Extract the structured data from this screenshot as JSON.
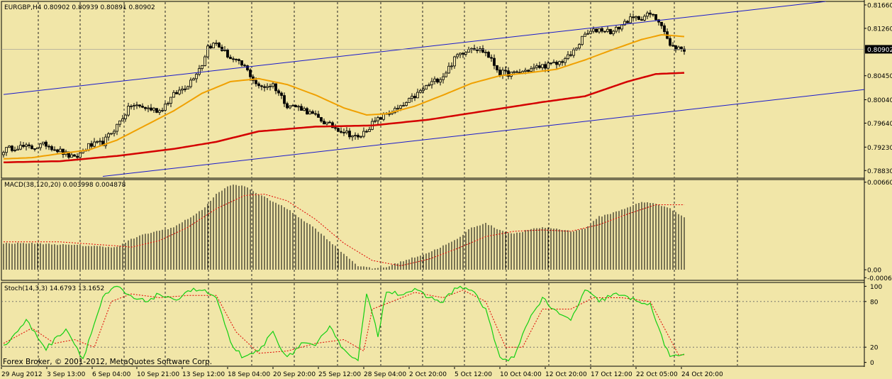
{
  "footer": "Forex Broker, © 2001-2012, MetaQuotes Software Corp.",
  "colors": {
    "background": "#f1e6a8",
    "grid": "#222222",
    "candle": "#000000",
    "ma_fast": "#f0a000",
    "ma_slow": "#d40000",
    "channel": "#1a1acc",
    "macd_signal": "#e00000",
    "stoch_main": "#12d012",
    "stoch_signal": "#e00000"
  },
  "chart_data": [
    {
      "type": "candlestick",
      "label": "EURGBP,H4  0.80902 0.80939 0.80891 0.80902",
      "current_price": "0.80902",
      "ylim": [
        0.787,
        0.8172
      ],
      "y_ticks": [
        "0.81660",
        "0.81260",
        "0.80902",
        "0.80450",
        "0.80040",
        "0.79640",
        "0.79230",
        "0.78830"
      ],
      "x_ticks": [
        "29 Aug 2012",
        "3 Sep 13:00",
        "6 Sep 04:00",
        "10 Sep 21:00",
        "13 Sep 12:00",
        "18 Sep 04:00",
        "20 Sep 20:00",
        "25 Sep 12:00",
        "28 Sep 04:00",
        "2 Oct 20:00",
        "5 Oct 12:00",
        "10 Oct 04:00",
        "12 Oct 20:00",
        "17 Oct 12:00",
        "22 Oct 05:00",
        "24 Oct 20:00"
      ],
      "close_anchors": [
        [
          0,
          0.7918
        ],
        [
          5,
          0.7924
        ],
        [
          10,
          0.7922
        ],
        [
          15,
          0.7928
        ],
        [
          20,
          0.7916
        ],
        [
          25,
          0.7903
        ],
        [
          30,
          0.7925
        ],
        [
          35,
          0.793
        ],
        [
          40,
          0.796
        ],
        [
          45,
          0.7995
        ],
        [
          50,
          0.799
        ],
        [
          55,
          0.7985
        ],
        [
          60,
          0.8012
        ],
        [
          65,
          0.803
        ],
        [
          70,
          0.8065
        ],
        [
          72,
          0.8095
        ],
        [
          75,
          0.81
        ],
        [
          80,
          0.8075
        ],
        [
          85,
          0.806
        ],
        [
          90,
          0.8025
        ],
        [
          95,
          0.803
        ],
        [
          100,
          0.7995
        ],
        [
          105,
          0.799
        ],
        [
          110,
          0.7975
        ],
        [
          115,
          0.796
        ],
        [
          120,
          0.795
        ],
        [
          125,
          0.7938
        ],
        [
          130,
          0.7963
        ],
        [
          135,
          0.798
        ],
        [
          140,
          0.799
        ],
        [
          145,
          0.801
        ],
        [
          150,
          0.803
        ],
        [
          155,
          0.8045
        ],
        [
          160,
          0.808
        ],
        [
          165,
          0.8095
        ],
        [
          170,
          0.8085
        ],
        [
          175,
          0.805
        ],
        [
          180,
          0.8048
        ],
        [
          185,
          0.8055
        ],
        [
          190,
          0.8062
        ],
        [
          195,
          0.8065
        ],
        [
          200,
          0.808
        ],
        [
          205,
          0.8115
        ],
        [
          210,
          0.8125
        ],
        [
          215,
          0.812
        ],
        [
          220,
          0.814
        ],
        [
          225,
          0.8145
        ],
        [
          228,
          0.815
        ],
        [
          232,
          0.8135
        ],
        [
          235,
          0.8095
        ],
        [
          240,
          0.809
        ]
      ],
      "ma_fast_anchors": [
        [
          0,
          0.7903
        ],
        [
          10,
          0.7905
        ],
        [
          20,
          0.7912
        ],
        [
          30,
          0.7918
        ],
        [
          40,
          0.7935
        ],
        [
          50,
          0.796
        ],
        [
          60,
          0.7985
        ],
        [
          70,
          0.8015
        ],
        [
          80,
          0.8035
        ],
        [
          90,
          0.804
        ],
        [
          100,
          0.803
        ],
        [
          110,
          0.8012
        ],
        [
          120,
          0.799
        ],
        [
          128,
          0.7978
        ],
        [
          135,
          0.798
        ],
        [
          145,
          0.7993
        ],
        [
          155,
          0.8012
        ],
        [
          165,
          0.8032
        ],
        [
          175,
          0.8045
        ],
        [
          185,
          0.805
        ],
        [
          195,
          0.8056
        ],
        [
          205,
          0.8072
        ],
        [
          215,
          0.809
        ],
        [
          225,
          0.8107
        ],
        [
          232,
          0.8115
        ],
        [
          240,
          0.8112
        ]
      ],
      "ma_slow_anchors": [
        [
          0,
          0.7897
        ],
        [
          20,
          0.7899
        ],
        [
          40,
          0.7908
        ],
        [
          60,
          0.792
        ],
        [
          75,
          0.7932
        ],
        [
          90,
          0.795
        ],
        [
          110,
          0.7958
        ],
        [
          130,
          0.796
        ],
        [
          150,
          0.797
        ],
        [
          170,
          0.7985
        ],
        [
          190,
          0.8
        ],
        [
          205,
          0.801
        ],
        [
          220,
          0.8035
        ],
        [
          230,
          0.8048
        ],
        [
          240,
          0.805
        ]
      ],
      "channel_upper": [
        [
          0,
          0.8013
        ],
        [
          290,
          0.8172
        ]
      ],
      "channel_lower": [
        [
          35,
          0.7873
        ],
        [
          310,
          0.8025
        ]
      ]
    },
    {
      "type": "bar",
      "label": "MACD(38,120,20) 0.003998 0.004878",
      "ylim": [
        -0.0008,
        0.0068
      ],
      "y_ticks": [
        "0.00660",
        "0.00",
        "-0.00060"
      ],
      "macd_anchors": [
        [
          0,
          0.002
        ],
        [
          10,
          0.002
        ],
        [
          20,
          0.0019
        ],
        [
          30,
          0.0018
        ],
        [
          40,
          0.0017
        ],
        [
          45,
          0.0023
        ],
        [
          50,
          0.0027
        ],
        [
          60,
          0.0032
        ],
        [
          70,
          0.0045
        ],
        [
          75,
          0.0057
        ],
        [
          80,
          0.0064
        ],
        [
          85,
          0.0063
        ],
        [
          90,
          0.0057
        ],
        [
          100,
          0.0046
        ],
        [
          110,
          0.0031
        ],
        [
          120,
          0.0012
        ],
        [
          125,
          0.0003
        ],
        [
          130,
          0.0001
        ],
        [
          135,
          0.0002
        ],
        [
          140,
          0.0006
        ],
        [
          150,
          0.0013
        ],
        [
          160,
          0.0023
        ],
        [
          165,
          0.0032
        ],
        [
          170,
          0.0035
        ],
        [
          175,
          0.003
        ],
        [
          180,
          0.0027
        ],
        [
          185,
          0.003
        ],
        [
          190,
          0.0032
        ],
        [
          195,
          0.0031
        ],
        [
          200,
          0.0029
        ],
        [
          205,
          0.0031
        ],
        [
          210,
          0.004
        ],
        [
          215,
          0.0043
        ],
        [
          220,
          0.0047
        ],
        [
          225,
          0.0051
        ],
        [
          230,
          0.005
        ],
        [
          235,
          0.0046
        ],
        [
          240,
          0.004
        ]
      ],
      "signal_anchors": [
        [
          0,
          0.0021
        ],
        [
          20,
          0.0021
        ],
        [
          40,
          0.0018
        ],
        [
          45,
          0.0017
        ],
        [
          55,
          0.0022
        ],
        [
          65,
          0.0032
        ],
        [
          75,
          0.0046
        ],
        [
          85,
          0.0056
        ],
        [
          92,
          0.0057
        ],
        [
          100,
          0.0052
        ],
        [
          110,
          0.0038
        ],
        [
          120,
          0.002
        ],
        [
          130,
          0.0007
        ],
        [
          140,
          0.0003
        ],
        [
          150,
          0.0008
        ],
        [
          160,
          0.0016
        ],
        [
          170,
          0.0025
        ],
        [
          180,
          0.0029
        ],
        [
          190,
          0.003
        ],
        [
          200,
          0.0029
        ],
        [
          210,
          0.0034
        ],
        [
          220,
          0.0042
        ],
        [
          230,
          0.0049
        ],
        [
          240,
          0.0049
        ]
      ]
    },
    {
      "type": "line",
      "label": "Stoch(14,3,3) 14.6793 13.1652",
      "ylim": [
        -5,
        105
      ],
      "y_ticks": [
        "100",
        "80",
        "20",
        "0"
      ],
      "main_anchors": [
        [
          0,
          20
        ],
        [
          8,
          55
        ],
        [
          15,
          18
        ],
        [
          22,
          45
        ],
        [
          28,
          5
        ],
        [
          35,
          85
        ],
        [
          40,
          100
        ],
        [
          45,
          85
        ],
        [
          50,
          80
        ],
        [
          55,
          90
        ],
        [
          60,
          80
        ],
        [
          65,
          95
        ],
        [
          70,
          95
        ],
        [
          75,
          85
        ],
        [
          80,
          25
        ],
        [
          85,
          5
        ],
        [
          90,
          15
        ],
        [
          95,
          40
        ],
        [
          100,
          5
        ],
        [
          105,
          25
        ],
        [
          110,
          20
        ],
        [
          115,
          50
        ],
        [
          120,
          15
        ],
        [
          125,
          5
        ],
        [
          128,
          90
        ],
        [
          132,
          35
        ],
        [
          135,
          95
        ],
        [
          140,
          90
        ],
        [
          145,
          95
        ],
        [
          150,
          85
        ],
        [
          155,
          80
        ],
        [
          160,
          100
        ],
        [
          165,
          95
        ],
        [
          170,
          70
        ],
        [
          175,
          5
        ],
        [
          180,
          5
        ],
        [
          185,
          55
        ],
        [
          190,
          85
        ],
        [
          195,
          65
        ],
        [
          200,
          55
        ],
        [
          205,
          95
        ],
        [
          210,
          80
        ],
        [
          215,
          90
        ],
        [
          220,
          85
        ],
        [
          225,
          80
        ],
        [
          228,
          75
        ],
        [
          232,
          35
        ],
        [
          235,
          5
        ],
        [
          240,
          12
        ]
      ],
      "signal_anchors": [
        [
          0,
          25
        ],
        [
          10,
          45
        ],
        [
          18,
          25
        ],
        [
          25,
          30
        ],
        [
          32,
          20
        ],
        [
          38,
          80
        ],
        [
          45,
          90
        ],
        [
          55,
          85
        ],
        [
          65,
          88
        ],
        [
          75,
          88
        ],
        [
          82,
          40
        ],
        [
          90,
          12
        ],
        [
          100,
          15
        ],
        [
          110,
          25
        ],
        [
          120,
          30
        ],
        [
          127,
          15
        ],
        [
          130,
          70
        ],
        [
          137,
          80
        ],
        [
          145,
          92
        ],
        [
          155,
          85
        ],
        [
          162,
          95
        ],
        [
          170,
          80
        ],
        [
          177,
          20
        ],
        [
          183,
          20
        ],
        [
          190,
          70
        ],
        [
          200,
          70
        ],
        [
          208,
          85
        ],
        [
          218,
          85
        ],
        [
          228,
          80
        ],
        [
          233,
          45
        ],
        [
          238,
          10
        ],
        [
          240,
          10
        ]
      ]
    }
  ]
}
